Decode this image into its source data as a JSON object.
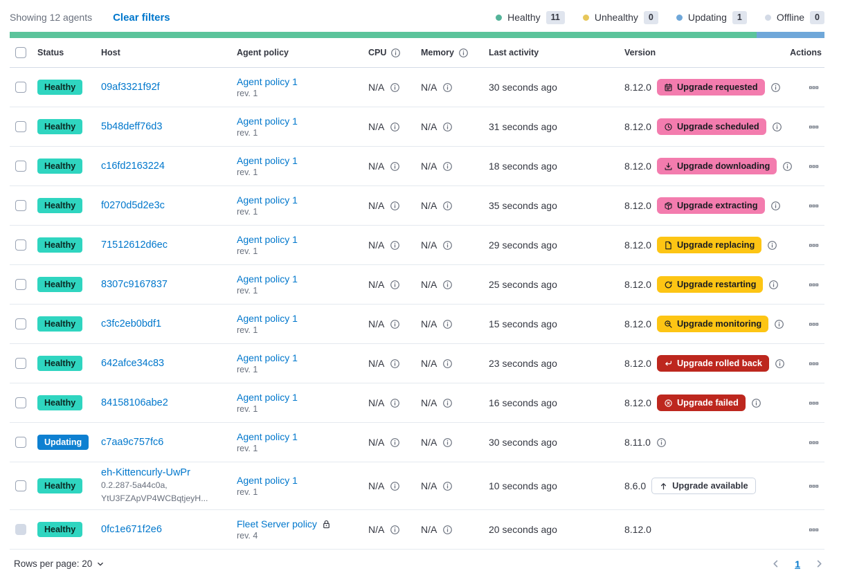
{
  "colors": {
    "link": "#0077CC",
    "healthy_badge": "#2FD5C0",
    "healthy_badge_text": "#0A2620",
    "updating_badge": "#0E80D1",
    "updating_badge_text": "#FFFFFF",
    "pink": "#F37CAE",
    "pink_text": "#1A1C21",
    "yellow": "#FDC514",
    "yellow_text": "#1A1C21",
    "red": "#BD271E",
    "red_text": "#FFFFFF",
    "hollow": "#FFFFFF",
    "hollow_text": "#343741",
    "hollow_border": "#CBD3DF",
    "bar_green": "#5BC49B",
    "bar_blue": "#6FA7D9",
    "legend_healthy": "#54B399",
    "legend_unhealthy": "#E7C75A",
    "legend_updating": "#6FA7D9",
    "legend_offline": "#D3DAE6"
  },
  "toolbar": {
    "showing": "Showing 12 agents",
    "clear_filters": "Clear filters",
    "legend": [
      {
        "label": "Healthy",
        "count": "11",
        "color": "#54B399"
      },
      {
        "label": "Unhealthy",
        "count": "0",
        "color": "#E7C75A"
      },
      {
        "label": "Updating",
        "count": "1",
        "color": "#6FA7D9"
      },
      {
        "label": "Offline",
        "count": "0",
        "color": "#D3DAE6"
      }
    ]
  },
  "status_bar": {
    "segments": [
      {
        "weight": 11,
        "color": "#5BC49B"
      },
      {
        "weight": 1,
        "color": "#6FA7D9"
      }
    ]
  },
  "table": {
    "headers": [
      {
        "label": "Status"
      },
      {
        "label": "Host"
      },
      {
        "label": "Agent policy"
      },
      {
        "label": "CPU",
        "info": true
      },
      {
        "label": "Memory",
        "info": true
      },
      {
        "label": "Last activity"
      },
      {
        "label": "Version"
      },
      {
        "label": "Actions"
      }
    ],
    "rows": [
      {
        "status": "Healthy",
        "status_variant": "healthy",
        "host": "09af3321f92f",
        "policy": "Agent policy 1",
        "rev": "rev. 1",
        "cpu": "N/A",
        "memory": "N/A",
        "last_activity": "30 seconds ago",
        "version": "8.12.0",
        "upgrade": {
          "label": "Upgrade requested",
          "icon": "calendar-icon",
          "variant": "pink",
          "info": true
        }
      },
      {
        "status": "Healthy",
        "status_variant": "healthy",
        "host": "5b48deff76d3",
        "policy": "Agent policy 1",
        "rev": "rev. 1",
        "cpu": "N/A",
        "memory": "N/A",
        "last_activity": "31 seconds ago",
        "version": "8.12.0",
        "upgrade": {
          "label": "Upgrade scheduled",
          "icon": "clock-icon",
          "variant": "pink",
          "info": true
        }
      },
      {
        "status": "Healthy",
        "status_variant": "healthy",
        "host": "c16fd2163224",
        "policy": "Agent policy 1",
        "rev": "rev. 1",
        "cpu": "N/A",
        "memory": "N/A",
        "last_activity": "18 seconds ago",
        "version": "8.12.0",
        "upgrade": {
          "label": "Upgrade downloading",
          "icon": "download-icon",
          "variant": "pink",
          "info": true
        }
      },
      {
        "status": "Healthy",
        "status_variant": "healthy",
        "host": "f0270d5d2e3c",
        "policy": "Agent policy 1",
        "rev": "rev. 1",
        "cpu": "N/A",
        "memory": "N/A",
        "last_activity": "35 seconds ago",
        "version": "8.12.0",
        "upgrade": {
          "label": "Upgrade extracting",
          "icon": "package-icon",
          "variant": "pink",
          "info": true
        }
      },
      {
        "status": "Healthy",
        "status_variant": "healthy",
        "host": "71512612d6ec",
        "policy": "Agent policy 1",
        "rev": "rev. 1",
        "cpu": "N/A",
        "memory": "N/A",
        "last_activity": "29 seconds ago",
        "version": "8.12.0",
        "upgrade": {
          "label": "Upgrade replacing",
          "icon": "document-icon",
          "variant": "yellow",
          "info": true
        }
      },
      {
        "status": "Healthy",
        "status_variant": "healthy",
        "host": "8307c9167837",
        "policy": "Agent policy 1",
        "rev": "rev. 1",
        "cpu": "N/A",
        "memory": "N/A",
        "last_activity": "25 seconds ago",
        "version": "8.12.0",
        "upgrade": {
          "label": "Upgrade restarting",
          "icon": "refresh-icon",
          "variant": "yellow",
          "info": true
        }
      },
      {
        "status": "Healthy",
        "status_variant": "healthy",
        "host": "c3fc2eb0bdf1",
        "policy": "Agent policy 1",
        "rev": "rev. 1",
        "cpu": "N/A",
        "memory": "N/A",
        "last_activity": "15 seconds ago",
        "version": "8.12.0",
        "upgrade": {
          "label": "Upgrade monitoring",
          "icon": "inspect-icon",
          "variant": "yellow",
          "info": true
        }
      },
      {
        "status": "Healthy",
        "status_variant": "healthy",
        "host": "642afce34c83",
        "policy": "Agent policy 1",
        "rev": "rev. 1",
        "cpu": "N/A",
        "memory": "N/A",
        "last_activity": "23 seconds ago",
        "version": "8.12.0",
        "upgrade": {
          "label": "Upgrade rolled back",
          "icon": "return-icon",
          "variant": "red",
          "info": true
        }
      },
      {
        "status": "Healthy",
        "status_variant": "healthy",
        "host": "84158106abe2",
        "policy": "Agent policy 1",
        "rev": "rev. 1",
        "cpu": "N/A",
        "memory": "N/A",
        "last_activity": "16 seconds ago",
        "version": "8.12.0",
        "upgrade": {
          "label": "Upgrade failed",
          "icon": "error-icon",
          "variant": "red",
          "info": true
        }
      },
      {
        "status": "Updating",
        "status_variant": "updating",
        "host": "c7aa9c757fc6",
        "policy": "Agent policy 1",
        "rev": "rev. 1",
        "cpu": "N/A",
        "memory": "N/A",
        "last_activity": "30 seconds ago",
        "version": "8.11.0",
        "version_info": true
      },
      {
        "status": "Healthy",
        "status_variant": "healthy",
        "host": "eh-Kittencurly-UwPr",
        "host_sub": [
          "0.2.287-5a44c0a,",
          "YtU3FZApVP4WCBqtjeyH..."
        ],
        "policy": "Agent policy 1",
        "rev": "rev. 1",
        "cpu": "N/A",
        "memory": "N/A",
        "last_activity": "10 seconds ago",
        "version": "8.6.0",
        "upgrade": {
          "label": "Upgrade available",
          "icon": "arrow-up-icon",
          "variant": "hollow",
          "info": false
        },
        "tall": true
      },
      {
        "status": "Healthy",
        "status_variant": "healthy",
        "host": "0fc1e671f2e6",
        "policy": "Fleet Server policy",
        "policy_lock": true,
        "rev": "rev. 4",
        "cpu": "N/A",
        "memory": "N/A",
        "last_activity": "20 seconds ago",
        "version": "8.12.0",
        "checkbox_disabled": true
      }
    ]
  },
  "footer": {
    "rows_per_page": "Rows per page: 20",
    "page": "1"
  }
}
